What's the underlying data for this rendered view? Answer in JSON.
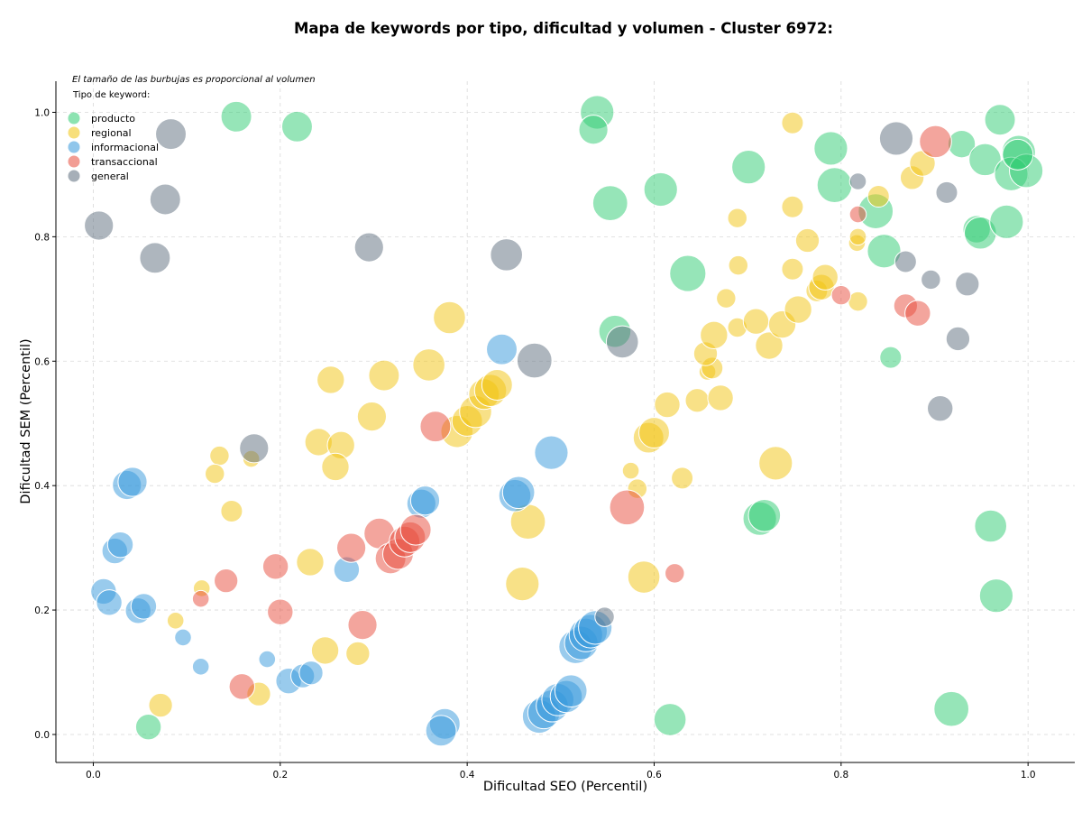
{
  "chart_data": {
    "type": "scatter",
    "title": "Mapa de keywords por tipo, dificultad y volumen - Cluster 6972:",
    "xlabel": "Dificultad SEO (Percentil)",
    "ylabel": "Dificultad SEM (Percentil)",
    "xlim": [
      -0.04,
      1.05
    ],
    "ylim": [
      -0.045,
      1.05
    ],
    "xticks": [
      "0.0",
      "0.2",
      "0.4",
      "0.6",
      "0.8",
      "1.0"
    ],
    "yticks": [
      "0.0",
      "0.2",
      "0.4",
      "0.6",
      "0.8",
      "1.0"
    ],
    "grid": true,
    "note": "El tamaño de las burbujas es proporcional al volumen",
    "legend": {
      "title": "Tipo de keyword:",
      "placement": "top-left"
    },
    "series": [
      {
        "name": "producto",
        "color": "#2ecc71",
        "points": [
          [
            0.153,
            0.993,
            2
          ],
          [
            0.218,
            0.977,
            2
          ],
          [
            0.539,
            1.0,
            2.4
          ],
          [
            0.535,
            0.972,
            1.8
          ],
          [
            0.553,
            0.854,
            2.6
          ],
          [
            0.607,
            0.876,
            2.4
          ],
          [
            0.558,
            0.648,
            2.2
          ],
          [
            0.636,
            0.741,
            2.8
          ],
          [
            0.701,
            0.912,
            2.4
          ],
          [
            0.789,
            0.942,
            2.4
          ],
          [
            0.793,
            0.883,
            2.6
          ],
          [
            0.837,
            0.841,
            2.6
          ],
          [
            0.846,
            0.777,
            2.4
          ],
          [
            0.853,
            0.606,
            1
          ],
          [
            0.929,
            0.949,
            1.6
          ],
          [
            0.954,
            0.924,
            2.2
          ],
          [
            0.945,
            0.812,
            1.6
          ],
          [
            0.949,
            0.806,
            2.2
          ],
          [
            0.97,
            0.988,
            2
          ],
          [
            0.99,
            0.936,
            2.4
          ],
          [
            0.982,
            0.901,
            2.4
          ],
          [
            0.998,
            0.906,
            2.4
          ],
          [
            0.977,
            0.824,
            2.4
          ],
          [
            0.989,
            0.932,
            2
          ],
          [
            0.713,
            0.347,
            2.4
          ],
          [
            0.718,
            0.352,
            2.2
          ],
          [
            0.96,
            0.335,
            2.2
          ],
          [
            0.966,
            0.223,
            2.4
          ],
          [
            0.918,
            0.041,
            2.6
          ],
          [
            0.617,
            0.024,
            2.2
          ],
          [
            0.059,
            0.012,
            1.4
          ]
        ]
      },
      {
        "name": "regional",
        "color": "#f1c40f",
        "points": [
          [
            0.381,
            0.67,
            2.2
          ],
          [
            0.359,
            0.594,
            2.2
          ],
          [
            0.311,
            0.577,
            2
          ],
          [
            0.254,
            0.57,
            1.6
          ],
          [
            0.298,
            0.511,
            1.8
          ],
          [
            0.241,
            0.47,
            1.6
          ],
          [
            0.265,
            0.465,
            1.6
          ],
          [
            0.259,
            0.43,
            1.6
          ],
          [
            0.169,
            0.443,
            0.6
          ],
          [
            0.135,
            0.448,
            0.8
          ],
          [
            0.13,
            0.419,
            0.8
          ],
          [
            0.148,
            0.359,
            1
          ],
          [
            0.116,
            0.235,
            0.6
          ],
          [
            0.088,
            0.183,
            0.6
          ],
          [
            0.232,
            0.277,
            1.6
          ],
          [
            0.248,
            0.135,
            1.6
          ],
          [
            0.283,
            0.13,
            1.2
          ],
          [
            0.177,
            0.065,
            1.2
          ],
          [
            0.072,
            0.047,
            1.2
          ],
          [
            0.389,
            0.487,
            2.2
          ],
          [
            0.4,
            0.504,
            2
          ],
          [
            0.409,
            0.519,
            2.2
          ],
          [
            0.418,
            0.547,
            2
          ],
          [
            0.425,
            0.553,
            2.2
          ],
          [
            0.432,
            0.562,
            2
          ],
          [
            0.465,
            0.342,
            2.6
          ],
          [
            0.459,
            0.242,
            2.4
          ],
          [
            0.589,
            0.253,
            2.2
          ],
          [
            0.575,
            0.424,
            0.6
          ],
          [
            0.582,
            0.395,
            0.8
          ],
          [
            0.63,
            0.412,
            1
          ],
          [
            0.594,
            0.477,
            2
          ],
          [
            0.6,
            0.485,
            2
          ],
          [
            0.614,
            0.53,
            1.4
          ],
          [
            0.646,
            0.537,
            1.2
          ],
          [
            0.671,
            0.541,
            1.4
          ],
          [
            0.657,
            0.583,
            0.6
          ],
          [
            0.662,
            0.589,
            1
          ],
          [
            0.655,
            0.612,
            1.2
          ],
          [
            0.664,
            0.642,
            1.6
          ],
          [
            0.689,
            0.654,
            0.8
          ],
          [
            0.709,
            0.664,
            1.4
          ],
          [
            0.723,
            0.625,
            1.6
          ],
          [
            0.737,
            0.659,
            1.6
          ],
          [
            0.754,
            0.683,
            1.6
          ],
          [
            0.774,
            0.713,
            1
          ],
          [
            0.779,
            0.719,
            1.4
          ],
          [
            0.783,
            0.735,
            1.4
          ],
          [
            0.677,
            0.701,
            0.8
          ],
          [
            0.69,
            0.754,
            0.8
          ],
          [
            0.748,
            0.748,
            1
          ],
          [
            0.764,
            0.794,
            1.2
          ],
          [
            0.689,
            0.83,
            0.8
          ],
          [
            0.748,
            0.848,
            1
          ],
          [
            0.817,
            0.79,
            0.6
          ],
          [
            0.818,
            0.8,
            0.6
          ],
          [
            0.84,
            0.865,
            1
          ],
          [
            0.876,
            0.895,
            1.2
          ],
          [
            0.887,
            0.918,
            1.4
          ],
          [
            0.748,
            0.983,
            1
          ],
          [
            0.818,
            0.696,
            0.8
          ],
          [
            0.73,
            0.436,
            2.4
          ]
        ]
      },
      {
        "name": "informacional",
        "color": "#3498db",
        "points": [
          [
            0.437,
            0.619,
            2
          ],
          [
            0.49,
            0.453,
            2.4
          ],
          [
            0.451,
            0.384,
            2.2
          ],
          [
            0.455,
            0.389,
            2.2
          ],
          [
            0.351,
            0.371,
            1.8
          ],
          [
            0.355,
            0.376,
            1.8
          ],
          [
            0.271,
            0.265,
            1.4
          ],
          [
            0.186,
            0.121,
            0.6
          ],
          [
            0.209,
            0.086,
            1.4
          ],
          [
            0.224,
            0.094,
            1.2
          ],
          [
            0.233,
            0.099,
            1.2
          ],
          [
            0.115,
            0.109,
            0.6
          ],
          [
            0.096,
            0.156,
            0.6
          ],
          [
            0.048,
            0.199,
            1.4
          ],
          [
            0.054,
            0.206,
            1.4
          ],
          [
            0.011,
            0.23,
            1.4
          ],
          [
            0.017,
            0.212,
            1.4
          ],
          [
            0.023,
            0.295,
            1.4
          ],
          [
            0.029,
            0.305,
            1.4
          ],
          [
            0.036,
            0.401,
            1.8
          ],
          [
            0.042,
            0.406,
            1.8
          ],
          [
            0.376,
            0.017,
            2
          ],
          [
            0.372,
            0.006,
            2
          ],
          [
            0.477,
            0.029,
            2.4
          ],
          [
            0.482,
            0.035,
            2.2
          ],
          [
            0.491,
            0.046,
            2.2
          ],
          [
            0.497,
            0.056,
            2.2
          ],
          [
            0.506,
            0.061,
            2.2
          ],
          [
            0.511,
            0.07,
            2.2
          ],
          [
            0.516,
            0.141,
            2.4
          ],
          [
            0.522,
            0.147,
            2.4
          ],
          [
            0.527,
            0.16,
            2.4
          ],
          [
            0.532,
            0.166,
            2.4
          ],
          [
            0.537,
            0.172,
            2.4
          ]
        ]
      },
      {
        "name": "transaccional",
        "color": "#e74c3c",
        "points": [
          [
            0.366,
            0.495,
            2
          ],
          [
            0.306,
            0.323,
            2
          ],
          [
            0.318,
            0.283,
            2
          ],
          [
            0.326,
            0.29,
            2
          ],
          [
            0.333,
            0.31,
            2
          ],
          [
            0.339,
            0.317,
            2
          ],
          [
            0.345,
            0.329,
            2
          ],
          [
            0.276,
            0.3,
            1.8
          ],
          [
            0.288,
            0.176,
            1.8
          ],
          [
            0.195,
            0.27,
            1.4
          ],
          [
            0.2,
            0.197,
            1.4
          ],
          [
            0.142,
            0.247,
            1.2
          ],
          [
            0.115,
            0.218,
            0.6
          ],
          [
            0.159,
            0.077,
            1.4
          ],
          [
            0.571,
            0.365,
            2.6
          ],
          [
            0.622,
            0.259,
            0.8
          ],
          [
            0.8,
            0.706,
            0.8
          ],
          [
            0.818,
            0.836,
            0.6
          ],
          [
            0.869,
            0.689,
            1.2
          ],
          [
            0.882,
            0.677,
            1.4
          ],
          [
            0.901,
            0.953,
            2.2
          ]
        ]
      },
      {
        "name": "general",
        "color": "#5d6d7e",
        "points": [
          [
            0.083,
            0.965,
            2
          ],
          [
            0.006,
            0.818,
            1.8
          ],
          [
            0.077,
            0.86,
            2
          ],
          [
            0.066,
            0.766,
            2
          ],
          [
            0.295,
            0.783,
            1.8
          ],
          [
            0.442,
            0.771,
            2.2
          ],
          [
            0.172,
            0.46,
            1.8
          ],
          [
            0.472,
            0.601,
            2.6
          ],
          [
            0.566,
            0.631,
            2.2
          ],
          [
            0.547,
            0.189,
            0.8
          ],
          [
            0.818,
            0.889,
            0.6
          ],
          [
            0.859,
            0.958,
            2.4
          ],
          [
            0.913,
            0.871,
            1
          ],
          [
            0.869,
            0.76,
            1
          ],
          [
            0.896,
            0.731,
            0.8
          ],
          [
            0.935,
            0.724,
            1.2
          ],
          [
            0.925,
            0.636,
            1.2
          ],
          [
            0.906,
            0.524,
            1.4
          ]
        ]
      }
    ]
  }
}
